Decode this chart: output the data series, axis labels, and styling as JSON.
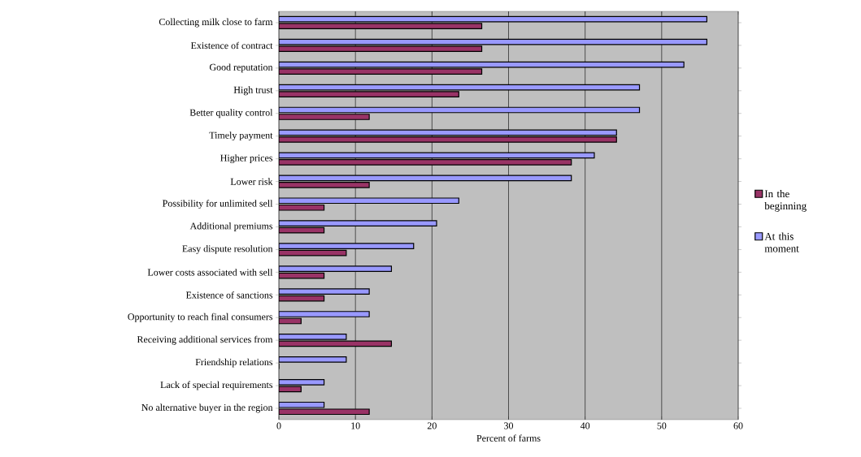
{
  "chart_data": {
    "type": "bar",
    "orientation": "horizontal",
    "xlabel": "Percent of farms",
    "categories": [
      "Collecting milk close to farm",
      "Existence of contract",
      "Good reputation",
      "High trust",
      "Better quality control",
      "Timely payment",
      "Higher prices",
      "Lower risk",
      "Possibility for unlimited sell",
      "Additional premiums",
      "Easy dispute resolution",
      "Lower costs associated with sell",
      "Existence of sanctions",
      "Opportunity to reach final consumers",
      "Receiving additional services from",
      "Friendship relations",
      "Lack of special requirements",
      "No alternative buyer in the region"
    ],
    "series": [
      {
        "name": "In the beginning",
        "color": "#993366",
        "values": [
          26.5,
          26.5,
          26.5,
          23.5,
          11.8,
          44.1,
          38.2,
          11.8,
          5.9,
          5.9,
          8.8,
          5.9,
          5.9,
          2.9,
          14.7,
          0,
          2.9,
          11.8
        ]
      },
      {
        "name": "At this moment",
        "color": "#9999ff",
        "values": [
          55.9,
          55.9,
          52.9,
          47.1,
          47.1,
          44.1,
          41.2,
          38.2,
          23.5,
          20.6,
          17.6,
          14.7,
          11.8,
          11.8,
          8.8,
          8.8,
          5.9,
          5.9
        ]
      }
    ],
    "xlim": [
      0,
      60
    ],
    "xticks": [
      0,
      10,
      20,
      30,
      40,
      50,
      60
    ],
    "grid": "x",
    "legend": "right"
  }
}
